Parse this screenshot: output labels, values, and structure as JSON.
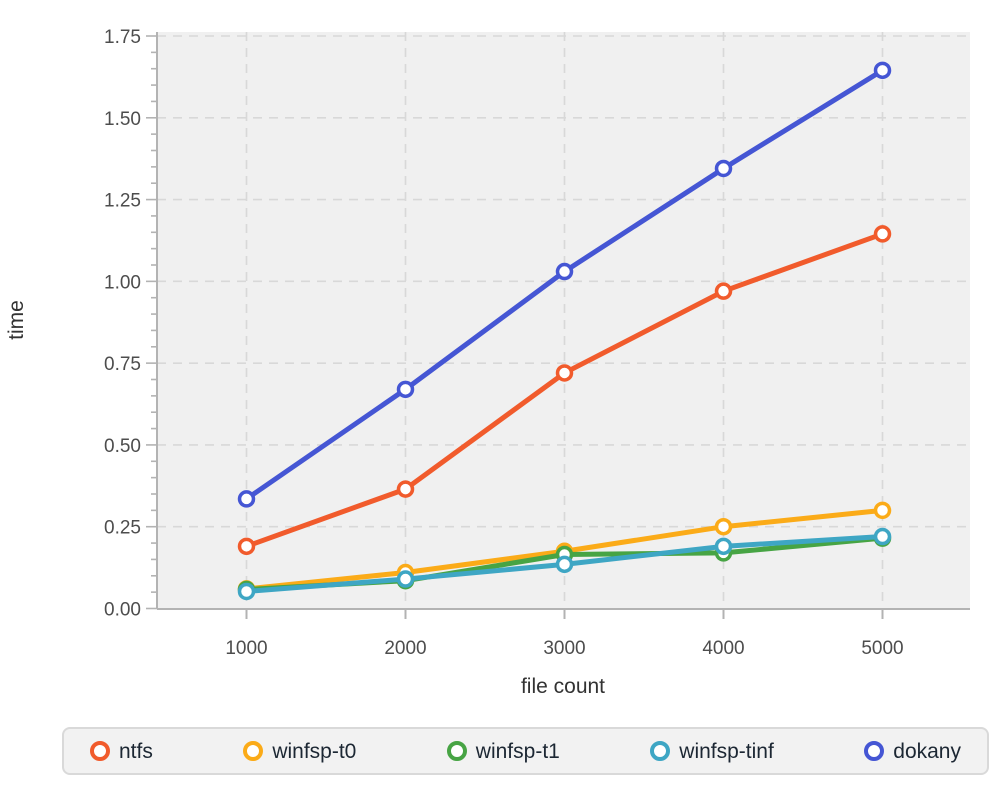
{
  "chart_data": {
    "type": "line",
    "title": "",
    "xlabel": "file count",
    "ylabel": "time",
    "x": [
      1000,
      2000,
      3000,
      4000,
      5000
    ],
    "x_tick_labels": [
      "1000",
      "2000",
      "3000",
      "4000",
      "5000"
    ],
    "y_tick_labels": [
      "0.00",
      "0.25",
      "0.50",
      "0.75",
      "1.00",
      "1.25",
      "1.50",
      "1.75"
    ],
    "ylim": [
      0,
      1.75
    ],
    "y_major_step": 0.25,
    "y_minor_step": 0.05,
    "grid": "dashed-both-axes",
    "marker": "open-circle",
    "legend_position": "bottom",
    "series": [
      {
        "name": "ntfs",
        "color": "#f15b2c",
        "values": [
          0.19,
          0.365,
          0.72,
          0.97,
          1.145
        ]
      },
      {
        "name": "winfsp-t0",
        "color": "#fbab18",
        "values": [
          0.06,
          0.11,
          0.175,
          0.25,
          0.3
        ]
      },
      {
        "name": "winfsp-t1",
        "color": "#47a444",
        "values": [
          0.058,
          0.085,
          0.165,
          0.17,
          0.215
        ]
      },
      {
        "name": "winfsp-tinf",
        "color": "#3ea6c4",
        "values": [
          0.052,
          0.09,
          0.135,
          0.19,
          0.22
        ]
      },
      {
        "name": "dokany",
        "color": "#4556d4",
        "values": [
          0.335,
          0.67,
          1.03,
          1.345,
          1.645
        ]
      }
    ]
  },
  "icons": {
    "legend_marker": "open-circle-icon"
  },
  "colors": {
    "page_bg": "#ffffff",
    "plot_bg": "#f0f0f0",
    "grid": "#d8d8d8",
    "axis": "#b3b3b3",
    "tick_label": "#4d4d4d",
    "axis_title": "#333333",
    "legend_bg": "#f2f2f2",
    "legend_border": "#d9d9d9",
    "legend_text": "#1c2733"
  }
}
